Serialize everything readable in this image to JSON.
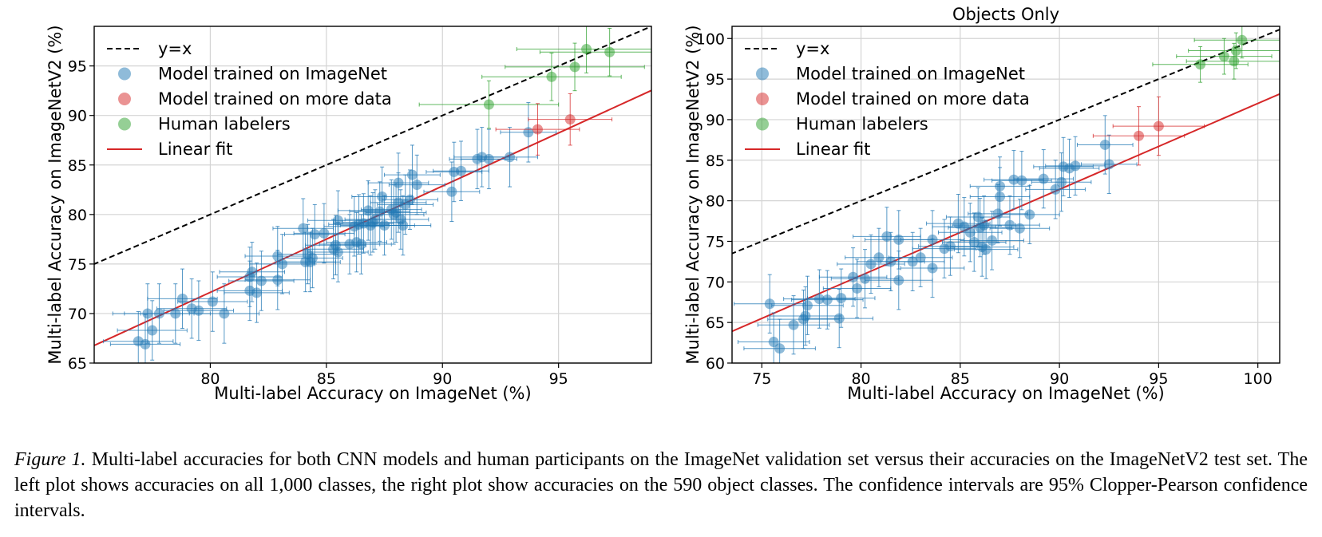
{
  "chart_data": [
    {
      "type": "scatter",
      "title": "",
      "xlabel": "Multi-label Accuracy on ImageNet (%)",
      "ylabel": "Multi-label Accuracy on ImageNetV2 (%)",
      "xlim": [
        75,
        99
      ],
      "ylim": [
        65,
        99
      ],
      "xticks": [
        80,
        85,
        90,
        95
      ],
      "yticks": [
        65,
        70,
        75,
        80,
        85,
        90,
        95
      ],
      "grid": true,
      "legend_position": "top-left",
      "legend": [
        "y=x",
        "Model trained on ImageNet",
        "Model trained on more data",
        "Human labelers",
        "Linear fit"
      ],
      "colors": {
        "imagenet": "#1f77b4",
        "more_data": "#d62728",
        "human": "#2ca02c",
        "fit": "#d62728",
        "ideal": "#000000"
      },
      "linear_fit": {
        "slope": 1.073,
        "intercept": -13.7
      },
      "series": [
        {
          "name": "Model trained on ImageNet",
          "points": [
            [
              76.9,
              67.2,
              1.5,
              3.0
            ],
            [
              77.2,
              66.9,
              1.5,
              3.0
            ],
            [
              77.3,
              70.0,
              1.5,
              3.0
            ],
            [
              77.5,
              68.3,
              1.5,
              3.0
            ],
            [
              77.8,
              70.0,
              1.5,
              3.0
            ],
            [
              78.5,
              70.0,
              1.5,
              3.0
            ],
            [
              78.8,
              71.5,
              1.5,
              3.0
            ],
            [
              79.2,
              70.5,
              1.5,
              3.0
            ],
            [
              79.5,
              70.3,
              1.5,
              3.0
            ],
            [
              80.1,
              71.2,
              1.5,
              3.0
            ],
            [
              80.6,
              70.0,
              1.5,
              3.0
            ],
            [
              81.7,
              72.3,
              1.4,
              3.0
            ],
            [
              81.7,
              73.7,
              1.4,
              3.0
            ],
            [
              81.8,
              74.2,
              1.4,
              3.0
            ],
            [
              82.0,
              72.1,
              1.4,
              3.0
            ],
            [
              82.2,
              73.3,
              1.4,
              3.0
            ],
            [
              82.9,
              75.8,
              1.4,
              3.0
            ],
            [
              82.9,
              73.4,
              1.4,
              3.0
            ],
            [
              83.1,
              75.0,
              1.4,
              3.0
            ],
            [
              84.0,
              78.6,
              1.3,
              3.0
            ],
            [
              84.1,
              75.2,
              1.3,
              3.0
            ],
            [
              84.2,
              76.0,
              1.3,
              3.0
            ],
            [
              84.3,
              75.2,
              1.3,
              3.0
            ],
            [
              84.4,
              75.6,
              1.3,
              3.0
            ],
            [
              84.5,
              78.0,
              1.3,
              3.0
            ],
            [
              84.9,
              78.1,
              1.3,
              3.0
            ],
            [
              85.3,
              76.5,
              1.3,
              3.0
            ],
            [
              85.4,
              76.9,
              1.3,
              3.0
            ],
            [
              85.5,
              76.2,
              1.3,
              3.0
            ],
            [
              85.5,
              79.4,
              1.3,
              3.0
            ],
            [
              86.0,
              77.0,
              1.3,
              3.0
            ],
            [
              86.2,
              78.8,
              1.3,
              3.0
            ],
            [
              86.3,
              77.2,
              1.3,
              3.0
            ],
            [
              86.4,
              79.0,
              1.3,
              3.0
            ],
            [
              86.5,
              77.0,
              1.3,
              3.0
            ],
            [
              86.6,
              79.1,
              1.3,
              3.0
            ],
            [
              86.8,
              80.4,
              1.3,
              3.0
            ],
            [
              86.9,
              78.9,
              1.3,
              3.0
            ],
            [
              87.0,
              79.2,
              1.3,
              3.0
            ],
            [
              87.1,
              79.5,
              1.3,
              3.0
            ],
            [
              87.3,
              80.3,
              1.3,
              3.0
            ],
            [
              87.4,
              81.8,
              1.3,
              3.0
            ],
            [
              87.5,
              78.9,
              1.3,
              3.0
            ],
            [
              87.8,
              80.5,
              1.3,
              3.0
            ],
            [
              87.9,
              80.0,
              1.3,
              3.0
            ],
            [
              88.0,
              80.2,
              1.3,
              3.0
            ],
            [
              88.1,
              83.2,
              1.3,
              3.0
            ],
            [
              88.1,
              81.2,
              1.2,
              3.0
            ],
            [
              88.2,
              79.5,
              1.2,
              3.0
            ],
            [
              88.3,
              78.9,
              1.2,
              3.0
            ],
            [
              88.4,
              81.0,
              1.2,
              3.0
            ],
            [
              88.6,
              81.5,
              1.2,
              3.0
            ],
            [
              88.7,
              84.0,
              1.2,
              3.0
            ],
            [
              88.9,
              83.0,
              1.2,
              3.0
            ],
            [
              90.4,
              82.3,
              1.2,
              3.0
            ],
            [
              90.5,
              84.3,
              1.2,
              3.0
            ],
            [
              90.8,
              84.4,
              1.2,
              3.0
            ],
            [
              91.5,
              85.6,
              1.2,
              3.0
            ],
            [
              91.7,
              85.8,
              1.2,
              3.0
            ],
            [
              92.0,
              85.6,
              1.2,
              3.0
            ],
            [
              92.9,
              85.8,
              1.2,
              3.0
            ],
            [
              93.7,
              88.3,
              1.2,
              3.0
            ]
          ]
        },
        {
          "name": "Model trained on more data",
          "points": [
            [
              94.1,
              88.6,
              1.8,
              2.6
            ],
            [
              95.5,
              89.6,
              1.8,
              2.6
            ]
          ]
        },
        {
          "name": "Human labelers",
          "points": [
            [
              92.0,
              91.1,
              3.0,
              2.4
            ],
            [
              94.7,
              93.9,
              3.0,
              2.4
            ],
            [
              95.7,
              94.9,
              3.0,
              2.4
            ],
            [
              96.2,
              96.7,
              3.0,
              2.4
            ],
            [
              97.2,
              96.4,
              3.0,
              2.4
            ]
          ]
        }
      ]
    },
    {
      "type": "scatter",
      "title": "Objects Only",
      "xlabel": "Multi-label Accuracy on ImageNet (%)",
      "ylabel": "Multi-label Accuracy on ImageNetV2 (%)",
      "xlim": [
        73.5,
        101.1
      ],
      "ylim": [
        60,
        101.5
      ],
      "xticks": [
        75,
        80,
        85,
        90,
        95,
        100
      ],
      "yticks": [
        60,
        65,
        70,
        75,
        80,
        85,
        90,
        95,
        100
      ],
      "grid": true,
      "legend_position": "top-left",
      "legend": [
        "y=x",
        "Model trained on ImageNet",
        "Model trained on more data",
        "Human labelers",
        "Linear fit"
      ],
      "colors": {
        "imagenet": "#1f77b4",
        "more_data": "#d62728",
        "human": "#2ca02c",
        "fit": "#d62728",
        "ideal": "#000000"
      },
      "linear_fit": {
        "slope": 1.06,
        "intercept": -14.0
      },
      "series": [
        {
          "name": "Model trained on ImageNet",
          "points": [
            [
              75.4,
              67.3,
              1.8,
              3.6
            ],
            [
              75.6,
              62.6,
              1.8,
              3.6
            ],
            [
              75.9,
              61.8,
              1.8,
              3.6
            ],
            [
              76.6,
              64.7,
              1.8,
              3.6
            ],
            [
              77.1,
              65.4,
              1.8,
              3.6
            ],
            [
              77.2,
              65.8,
              1.8,
              3.6
            ],
            [
              77.3,
              67.1,
              1.8,
              3.6
            ],
            [
              77.9,
              67.9,
              1.8,
              3.6
            ],
            [
              78.3,
              67.8,
              1.8,
              3.6
            ],
            [
              78.9,
              65.5,
              1.7,
              3.6
            ],
            [
              79.0,
              68.0,
              1.7,
              3.6
            ],
            [
              79.6,
              70.6,
              1.7,
              3.6
            ],
            [
              79.8,
              69.2,
              1.7,
              3.6
            ],
            [
              80.2,
              70.4,
              1.7,
              3.6
            ],
            [
              80.5,
              72.2,
              1.7,
              3.6
            ],
            [
              80.9,
              73.0,
              1.7,
              3.6
            ],
            [
              81.3,
              75.6,
              1.7,
              3.6
            ],
            [
              81.5,
              72.5,
              1.7,
              3.6
            ],
            [
              81.9,
              75.2,
              1.7,
              3.6
            ],
            [
              81.9,
              70.2,
              1.7,
              3.6
            ],
            [
              82.6,
              72.5,
              1.6,
              3.6
            ],
            [
              83.0,
              73.0,
              1.6,
              3.6
            ],
            [
              83.6,
              75.2,
              1.6,
              3.6
            ],
            [
              83.6,
              71.7,
              1.6,
              3.6
            ],
            [
              84.2,
              74.1,
              1.6,
              3.6
            ],
            [
              84.5,
              74.4,
              1.6,
              3.6
            ],
            [
              84.9,
              77.2,
              1.6,
              3.6
            ],
            [
              85.2,
              76.8,
              1.6,
              3.6
            ],
            [
              85.5,
              76.1,
              1.6,
              3.6
            ],
            [
              85.7,
              74.9,
              1.6,
              3.6
            ],
            [
              85.9,
              78.0,
              1.6,
              3.6
            ],
            [
              86.0,
              76.7,
              1.6,
              3.6
            ],
            [
              86.1,
              74.3,
              1.6,
              3.6
            ],
            [
              86.2,
              77.0,
              1.6,
              3.6
            ],
            [
              86.3,
              74.0,
              1.6,
              3.6
            ],
            [
              86.6,
              75.1,
              1.6,
              3.6
            ],
            [
              86.9,
              78.4,
              1.5,
              3.6
            ],
            [
              87.0,
              80.5,
              1.5,
              3.6
            ],
            [
              87.0,
              81.8,
              1.5,
              3.6
            ],
            [
              87.5,
              77.0,
              1.5,
              3.6
            ],
            [
              87.7,
              82.6,
              1.5,
              3.6
            ],
            [
              88.0,
              76.6,
              1.5,
              3.6
            ],
            [
              88.1,
              82.5,
              1.5,
              3.6
            ],
            [
              88.5,
              78.3,
              1.5,
              3.6
            ],
            [
              89.2,
              82.7,
              1.5,
              3.6
            ],
            [
              89.8,
              81.4,
              1.5,
              3.6
            ],
            [
              90.1,
              82.3,
              1.5,
              3.6
            ],
            [
              90.2,
              84.2,
              1.5,
              3.6
            ],
            [
              90.5,
              84.0,
              1.5,
              3.6
            ],
            [
              90.8,
              84.3,
              1.5,
              3.6
            ],
            [
              92.3,
              86.9,
              1.4,
              3.6
            ],
            [
              92.5,
              84.5,
              1.4,
              3.6
            ]
          ]
        },
        {
          "name": "Model trained on more data",
          "points": [
            [
              94.0,
              88.0,
              2.3,
              3.6
            ],
            [
              95.0,
              89.2,
              2.3,
              3.6
            ]
          ]
        },
        {
          "name": "Human labelers",
          "points": [
            [
              97.1,
              96.8,
              2.4,
              2.2
            ],
            [
              98.3,
              97.8,
              2.4,
              2.2
            ],
            [
              98.8,
              97.2,
              2.4,
              2.2
            ],
            [
              98.9,
              98.5,
              2.4,
              2.2
            ],
            [
              99.2,
              99.8,
              2.4,
              2.2
            ]
          ]
        }
      ]
    }
  ],
  "caption": {
    "lead": "Figure 1.",
    "text": " Multi-label accuracies for both CNN models and human participants on the ImageNet validation set versus their accuracies on the ImageNetV2 test set. The left plot shows accuracies on all 1,000 classes, the right plot show accuracies on the 590 object classes. The confidence intervals are 95% Clopper-Pearson confidence intervals."
  }
}
